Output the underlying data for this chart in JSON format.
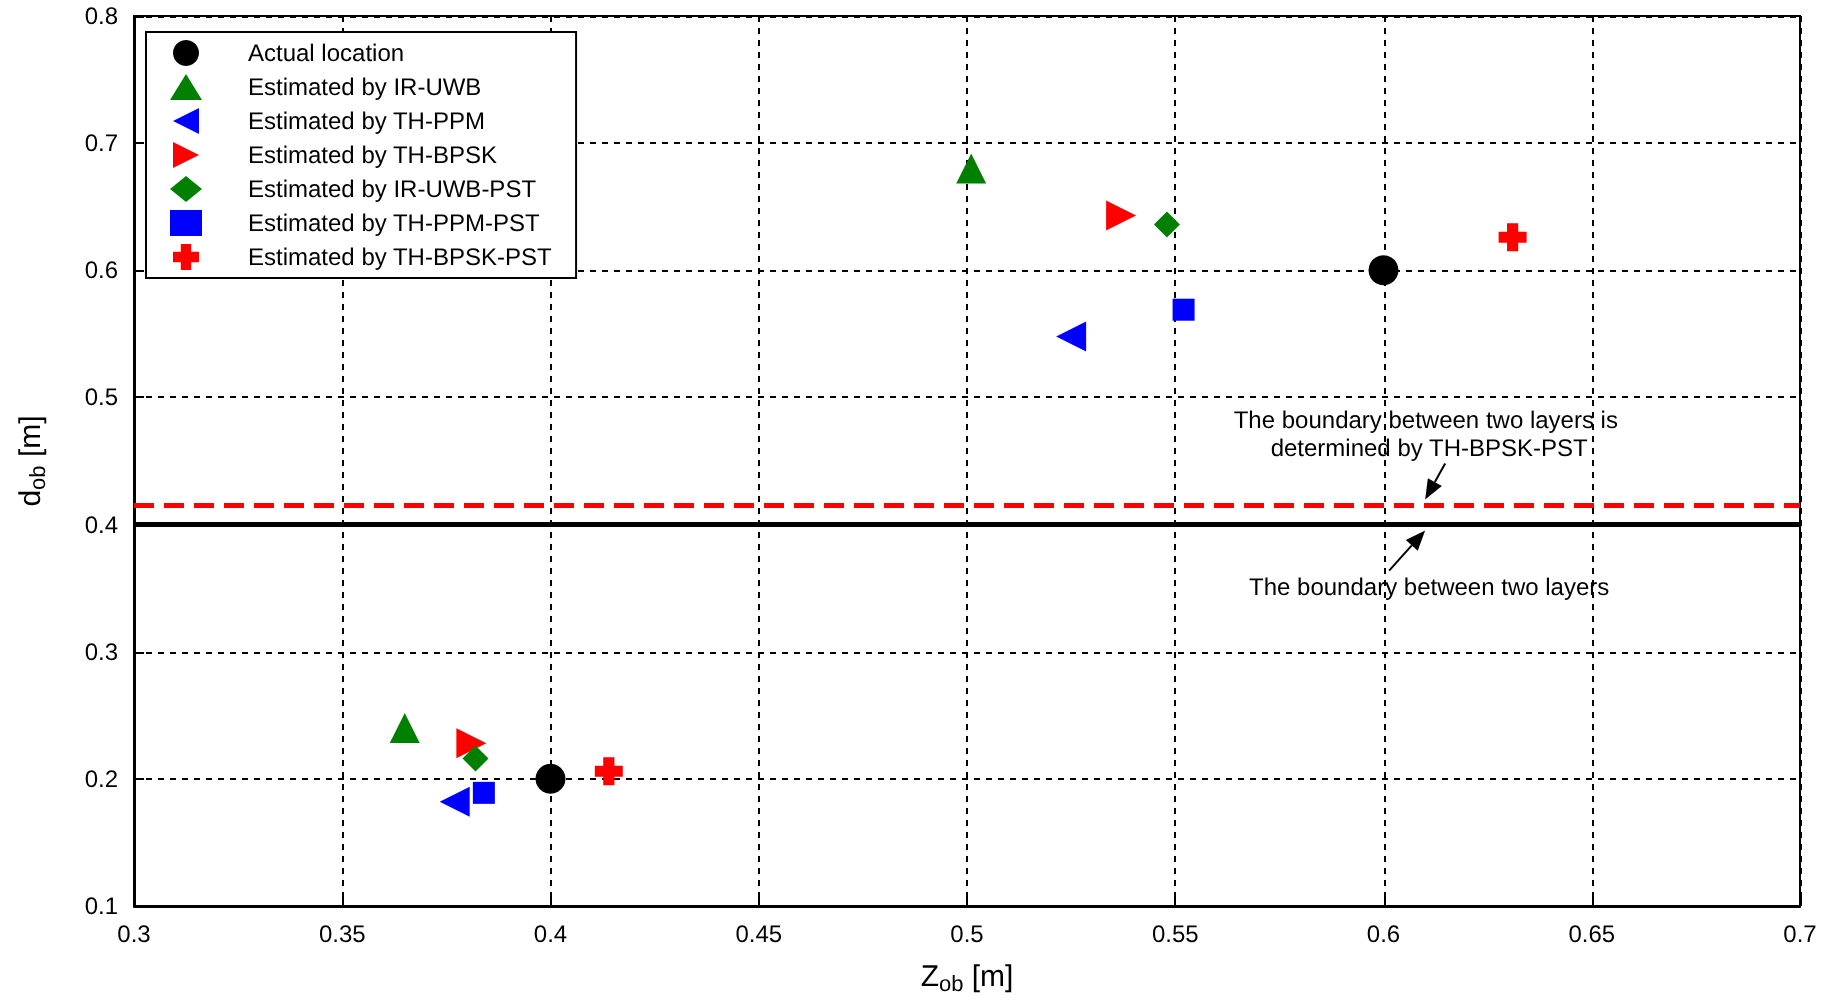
{
  "chart_data": {
    "type": "scatter",
    "xlabel": "Z$_{ob}$ [m]",
    "ylabel": "d$_{ob}$ [m]",
    "xlim": [
      0.3,
      0.7
    ],
    "xticks": [
      0.3,
      0.35,
      0.4,
      0.45,
      0.5,
      0.55,
      0.6,
      0.65,
      0.7
    ],
    "ylim": [
      0.1,
      0.8
    ],
    "yticks": [
      0.1,
      0.2,
      0.3,
      0.4,
      0.5,
      0.6,
      0.7,
      0.8
    ],
    "grid": true,
    "legend": "top left",
    "series": [
      {
        "name": "Actual location",
        "color": "#000000",
        "marker": "circle",
        "x": [
          0.4,
          0.6
        ],
        "values": [
          0.2,
          0.6
        ]
      },
      {
        "name": "Estimated by IR-UWB",
        "color": "#008000",
        "marker": "triangle",
        "x": [
          0.365,
          0.501
        ],
        "values": [
          0.24,
          0.68
        ]
      },
      {
        "name": "Estimated by TH-PPM",
        "color": "#0000ff",
        "marker": "triangle-left",
        "x": [
          0.377,
          0.525
        ],
        "values": [
          0.182,
          0.548
        ]
      },
      {
        "name": "Estimated by TH-BPSK",
        "color": "#ff0000",
        "marker": "triangle-right",
        "x": [
          0.381,
          0.537
        ],
        "values": [
          0.228,
          0.643
        ]
      },
      {
        "name": "Estimated by IR-UWB-PST",
        "color": "#008000",
        "marker": "diamond",
        "x": [
          0.382,
          0.548
        ],
        "values": [
          0.216,
          0.636
        ]
      },
      {
        "name": "Estimated by TH-PPM-PST",
        "color": "#0000ff",
        "marker": "square",
        "x": [
          0.384,
          0.552
        ],
        "values": [
          0.189,
          0.569
        ]
      },
      {
        "name": "Estimated by TH-BPSK-PST",
        "color": "#ff0000",
        "marker": "cross",
        "x": [
          0.414,
          0.631
        ],
        "values": [
          0.206,
          0.626
        ]
      }
    ],
    "ref_lines": [
      {
        "axis": "y",
        "value": 0.4,
        "label": "The boundary between two layers",
        "color": "#000000",
        "line_style": "solid"
      },
      {
        "axis": "y",
        "value": 0.415,
        "label": "The boundary between two layers is determined by TH-BPSK-PST",
        "color": "#ff0000",
        "line_style": "dashed"
      }
    ]
  }
}
